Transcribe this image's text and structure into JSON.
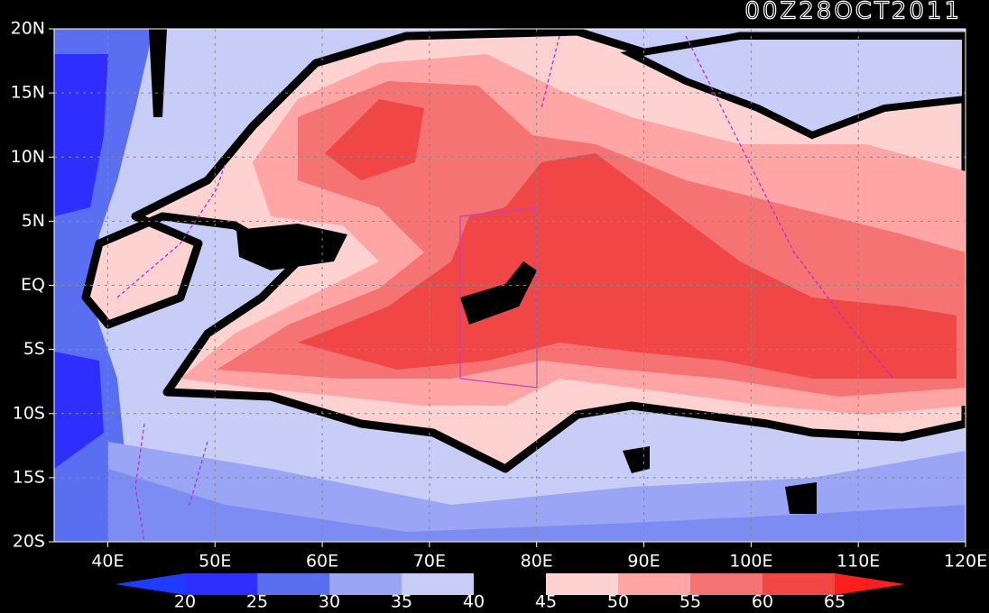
{
  "map": {
    "title": "00Z28OCT2011",
    "xlim": [
      35,
      120
    ],
    "ylim": [
      -20,
      20
    ],
    "xticks": [
      {
        "value": 40,
        "label": "40E"
      },
      {
        "value": 50,
        "label": "50E"
      },
      {
        "value": 60,
        "label": "60E"
      },
      {
        "value": 70,
        "label": "70E"
      },
      {
        "value": 80,
        "label": "80E"
      },
      {
        "value": 90,
        "label": "90E"
      },
      {
        "value": 100,
        "label": "100E"
      },
      {
        "value": 110,
        "label": "110E"
      },
      {
        "value": 120,
        "label": "120E"
      }
    ],
    "yticks": [
      {
        "value": 20,
        "label": "20N"
      },
      {
        "value": 15,
        "label": "15N"
      },
      {
        "value": 10,
        "label": "10N"
      },
      {
        "value": 5,
        "label": "5N"
      },
      {
        "value": 0,
        "label": "EQ"
      },
      {
        "value": -5,
        "label": "5S"
      },
      {
        "value": -10,
        "label": "10S"
      },
      {
        "value": -15,
        "label": "15S"
      },
      {
        "value": -20,
        "label": "20S"
      }
    ],
    "grid": true,
    "colorbar": {
      "levels": [
        20,
        25,
        30,
        35,
        40,
        45,
        50,
        55,
        60,
        65
      ],
      "colors": [
        "#1e3cff",
        "#2e2eff",
        "#5a6ef2",
        "#9aa5f5",
        "#c8cdf8",
        "#000000",
        "#ffd2d2",
        "#ffa5a5",
        "#f57373",
        "#f04646",
        "#ff1e1e"
      ]
    }
  }
}
